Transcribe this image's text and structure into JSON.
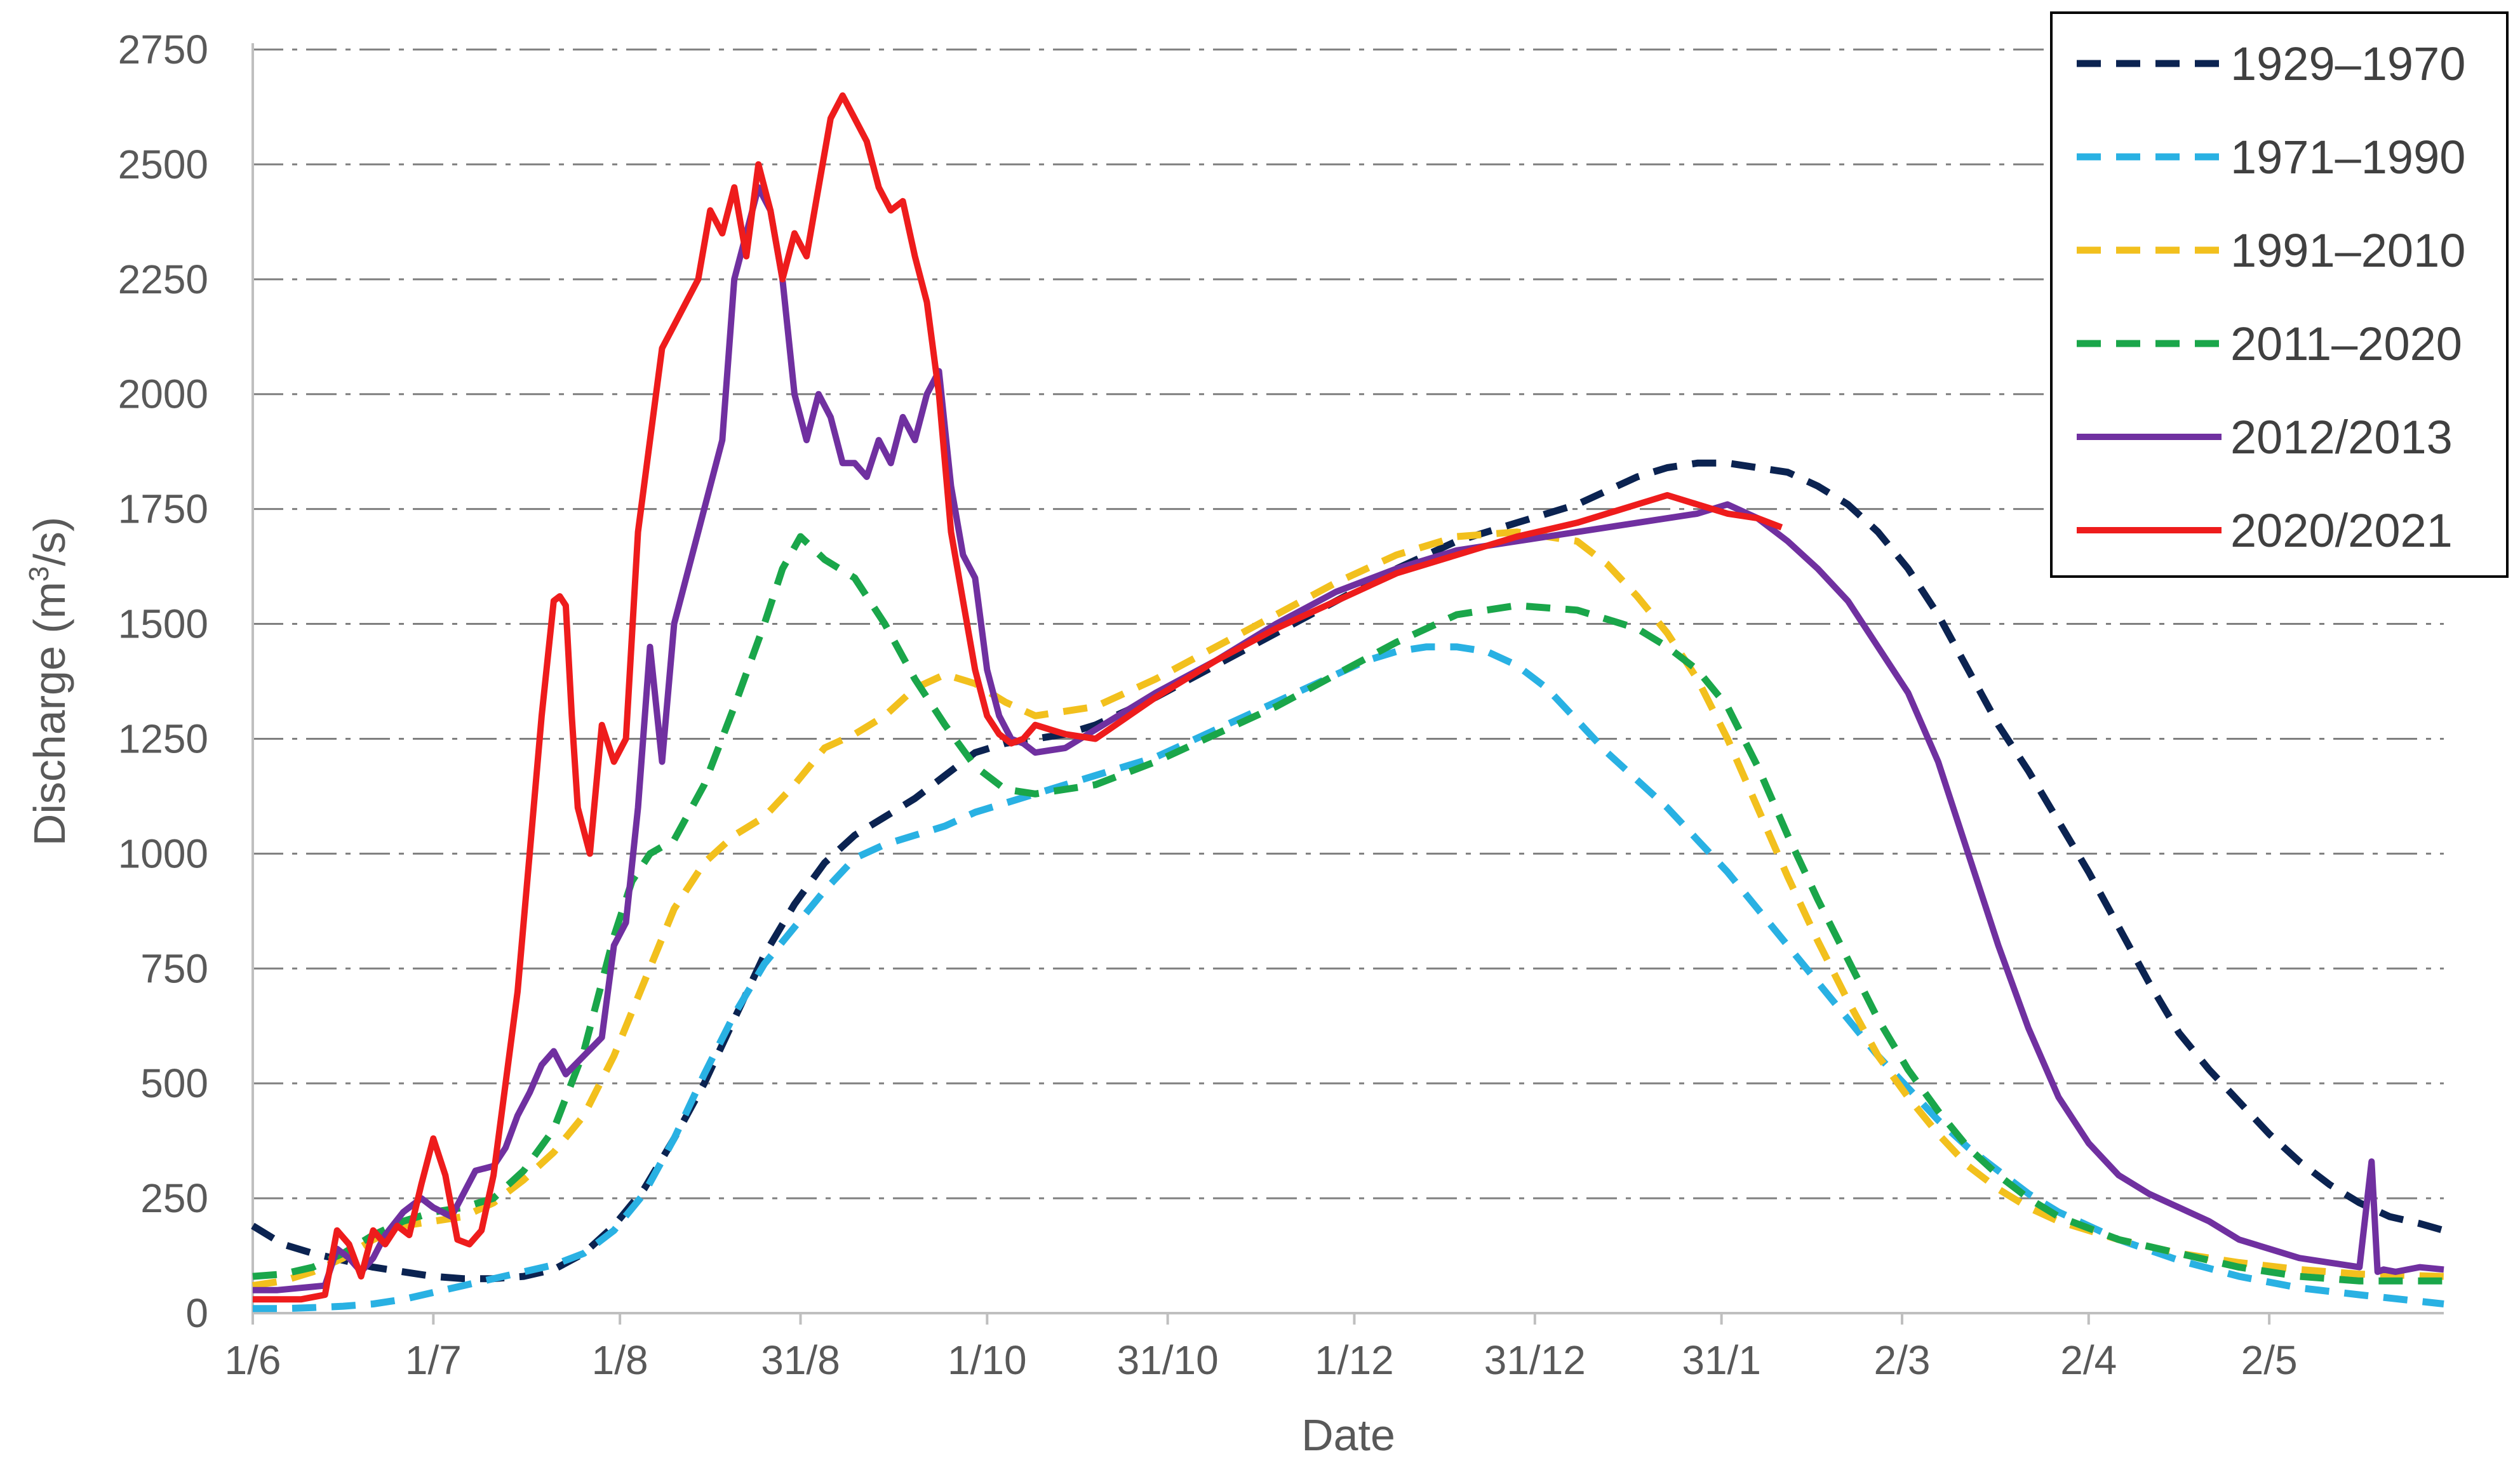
{
  "chart_data": {
    "type": "line",
    "xlabel": "Date",
    "ylabel": "Discharge (m³/s)",
    "ylabel_parts": [
      "Discharge (m",
      "3",
      "/s)"
    ],
    "ylim": [
      0,
      2750
    ],
    "yticks": [
      0,
      250,
      500,
      750,
      1000,
      1250,
      1500,
      1750,
      2000,
      2250,
      2500,
      2750
    ],
    "xlim_days": [
      0,
      364
    ],
    "xticks": [
      {
        "label": "1/6",
        "day": 0
      },
      {
        "label": "1/7",
        "day": 30
      },
      {
        "label": "1/8",
        "day": 61
      },
      {
        "label": "31/8",
        "day": 91
      },
      {
        "label": "1/10",
        "day": 122
      },
      {
        "label": "31/10",
        "day": 152
      },
      {
        "label": "1/12",
        "day": 183
      },
      {
        "label": "31/12",
        "day": 213
      },
      {
        "label": "31/1",
        "day": 244
      },
      {
        "label": "2/3",
        "day": 274
      },
      {
        "label": "2/4",
        "day": 305
      },
      {
        "label": "2/5",
        "day": 335
      }
    ],
    "grid": true,
    "legend_position": "top-right",
    "series": [
      {
        "name": "1929–1970",
        "color": "#0b2351",
        "style": "dashed",
        "x": [
          0,
          5,
          10,
          15,
          20,
          25,
          30,
          35,
          40,
          45,
          50,
          55,
          60,
          65,
          70,
          75,
          80,
          85,
          90,
          95,
          100,
          105,
          110,
          115,
          120,
          125,
          130,
          135,
          140,
          145,
          150,
          160,
          170,
          180,
          190,
          200,
          210,
          220,
          225,
          230,
          235,
          240,
          245,
          250,
          255,
          260,
          265,
          270,
          275,
          280,
          285,
          290,
          295,
          300,
          305,
          310,
          315,
          320,
          325,
          330,
          335,
          340,
          345,
          350,
          355,
          360,
          364
        ],
        "y": [
          190,
          150,
          130,
          115,
          100,
          90,
          80,
          75,
          75,
          80,
          95,
          130,
          190,
          270,
          380,
          500,
          640,
          780,
          890,
          980,
          1040,
          1080,
          1120,
          1170,
          1220,
          1240,
          1250,
          1260,
          1280,
          1310,
          1340,
          1410,
          1480,
          1550,
          1620,
          1680,
          1720,
          1760,
          1790,
          1820,
          1840,
          1850,
          1850,
          1840,
          1830,
          1800,
          1760,
          1700,
          1620,
          1520,
          1400,
          1280,
          1180,
          1070,
          960,
          840,
          720,
          610,
          530,
          460,
          390,
          330,
          280,
          240,
          210,
          195,
          180
        ]
      },
      {
        "name": "1971–1990",
        "color": "#29b1e3",
        "style": "dashed",
        "x": [
          0,
          5,
          10,
          15,
          20,
          25,
          30,
          35,
          40,
          45,
          50,
          55,
          60,
          65,
          70,
          75,
          80,
          85,
          90,
          95,
          100,
          105,
          110,
          115,
          120,
          125,
          130,
          140,
          150,
          160,
          170,
          180,
          185,
          190,
          195,
          200,
          205,
          210,
          215,
          220,
          225,
          230,
          235,
          240,
          245,
          250,
          255,
          260,
          265,
          270,
          275,
          280,
          285,
          290,
          295,
          300,
          310,
          320,
          330,
          340,
          350,
          364
        ],
        "y": [
          10,
          10,
          12,
          15,
          20,
          30,
          45,
          60,
          75,
          90,
          105,
          130,
          180,
          260,
          380,
          520,
          650,
          760,
          840,
          920,
          990,
          1020,
          1040,
          1060,
          1090,
          1110,
          1130,
          1170,
          1210,
          1270,
          1330,
          1390,
          1420,
          1440,
          1450,
          1450,
          1440,
          1410,
          1360,
          1290,
          1220,
          1160,
          1100,
          1030,
          960,
          880,
          800,
          720,
          640,
          560,
          490,
          420,
          360,
          310,
          260,
          220,
          160,
          115,
          80,
          55,
          40,
          20
        ]
      },
      {
        "name": "1991–2010",
        "color": "#f2c01d",
        "style": "dashed",
        "x": [
          0,
          5,
          10,
          15,
          20,
          25,
          30,
          35,
          40,
          45,
          50,
          55,
          60,
          65,
          70,
          75,
          80,
          85,
          90,
          95,
          100,
          105,
          110,
          115,
          120,
          125,
          130,
          140,
          150,
          160,
          170,
          180,
          190,
          200,
          210,
          220,
          225,
          230,
          235,
          240,
          245,
          250,
          255,
          260,
          265,
          270,
          275,
          280,
          285,
          290,
          295,
          300,
          310,
          320,
          330,
          340,
          350,
          364
        ],
        "y": [
          60,
          70,
          90,
          120,
          160,
          190,
          200,
          210,
          240,
          290,
          350,
          430,
          560,
          720,
          880,
          980,
          1040,
          1080,
          1150,
          1230,
          1260,
          1300,
          1360,
          1390,
          1370,
          1330,
          1300,
          1320,
          1380,
          1450,
          1520,
          1590,
          1650,
          1690,
          1700,
          1680,
          1630,
          1560,
          1480,
          1380,
          1250,
          1100,
          950,
          810,
          680,
          560,
          470,
          390,
          320,
          270,
          230,
          200,
          160,
          130,
          110,
          95,
          85,
          80
        ]
      },
      {
        "name": "2011–2020",
        "color": "#1aa64a",
        "style": "dashed",
        "x": [
          0,
          5,
          10,
          15,
          20,
          25,
          30,
          35,
          40,
          45,
          50,
          55,
          60,
          63,
          66,
          70,
          75,
          80,
          85,
          88,
          91,
          95,
          100,
          105,
          110,
          115,
          120,
          125,
          130,
          140,
          150,
          160,
          170,
          180,
          190,
          200,
          210,
          220,
          225,
          230,
          235,
          240,
          245,
          250,
          255,
          260,
          265,
          270,
          275,
          280,
          285,
          290,
          295,
          300,
          310,
          320,
          330,
          340,
          350,
          364
        ],
        "y": [
          80,
          85,
          100,
          130,
          170,
          200,
          220,
          230,
          250,
          310,
          400,
          570,
          820,
          940,
          1000,
          1030,
          1150,
          1320,
          1500,
          1620,
          1690,
          1640,
          1600,
          1500,
          1380,
          1280,
          1190,
          1140,
          1130,
          1150,
          1200,
          1260,
          1320,
          1390,
          1460,
          1520,
          1540,
          1530,
          1510,
          1490,
          1450,
          1400,
          1320,
          1190,
          1040,
          900,
          770,
          640,
          530,
          440,
          360,
          300,
          250,
          210,
          160,
          130,
          100,
          80,
          70,
          70
        ]
      },
      {
        "name": "2012/2013",
        "color": "#7030a0",
        "style": "solid",
        "x": [
          0,
          4,
          8,
          12,
          14,
          16,
          18,
          20,
          22,
          25,
          28,
          30,
          33,
          35,
          37,
          40,
          42,
          44,
          46,
          48,
          50,
          52,
          55,
          58,
          60,
          62,
          64,
          66,
          68,
          70,
          72,
          74,
          76,
          78,
          80,
          82,
          84,
          86,
          88,
          90,
          92,
          94,
          96,
          98,
          100,
          102,
          104,
          106,
          108,
          110,
          112,
          114,
          116,
          118,
          120,
          122,
          124,
          126,
          128,
          130,
          135,
          140,
          150,
          160,
          170,
          180,
          190,
          200,
          210,
          220,
          230,
          240,
          245,
          250,
          255,
          260,
          265,
          270,
          275,
          280,
          285,
          290,
          295,
          300,
          305,
          310,
          315,
          320,
          325,
          330,
          335,
          340,
          345,
          350,
          352,
          353,
          354,
          356,
          360,
          364
        ],
        "y": [
          50,
          50,
          55,
          60,
          140,
          120,
          90,
          120,
          170,
          220,
          250,
          230,
          210,
          260,
          310,
          320,
          360,
          430,
          480,
          540,
          570,
          520,
          560,
          600,
          800,
          850,
          1100,
          1450,
          1200,
          1500,
          1600,
          1700,
          1800,
          1900,
          2250,
          2350,
          2450,
          2400,
          2250,
          2000,
          1900,
          2000,
          1950,
          1850,
          1850,
          1820,
          1900,
          1850,
          1950,
          1900,
          2000,
          2050,
          1800,
          1650,
          1600,
          1400,
          1300,
          1250,
          1240,
          1220,
          1230,
          1270,
          1350,
          1420,
          1500,
          1570,
          1620,
          1660,
          1680,
          1700,
          1720,
          1740,
          1760,
          1730,
          1680,
          1620,
          1550,
          1450,
          1350,
          1200,
          1000,
          800,
          620,
          470,
          370,
          300,
          260,
          230,
          200,
          160,
          140,
          120,
          110,
          100,
          330,
          90,
          95,
          90,
          100,
          95
        ]
      },
      {
        "name": "2020/2021",
        "color": "#ee1c1c",
        "style": "solid",
        "x": [
          0,
          4,
          8,
          12,
          14,
          16,
          18,
          20,
          22,
          24,
          26,
          28,
          30,
          32,
          34,
          36,
          38,
          40,
          42,
          44,
          46,
          48,
          50,
          51,
          52,
          53,
          54,
          56,
          58,
          60,
          62,
          64,
          66,
          68,
          70,
          72,
          74,
          76,
          78,
          80,
          82,
          84,
          86,
          88,
          90,
          92,
          94,
          96,
          98,
          100,
          102,
          104,
          106,
          108,
          110,
          112,
          114,
          116,
          118,
          120,
          122,
          124,
          126,
          128,
          130,
          135,
          140,
          150,
          160,
          170,
          180,
          190,
          200,
          210,
          220,
          230,
          235,
          240,
          245,
          250,
          254
        ],
        "y": [
          30,
          30,
          30,
          40,
          180,
          150,
          80,
          180,
          150,
          190,
          170,
          280,
          380,
          300,
          160,
          150,
          180,
          300,
          500,
          700,
          1000,
          1300,
          1550,
          1560,
          1540,
          1300,
          1100,
          1000,
          1280,
          1200,
          1250,
          1700,
          1900,
          2100,
          2150,
          2200,
          2250,
          2400,
          2350,
          2450,
          2300,
          2500,
          2400,
          2250,
          2350,
          2300,
          2450,
          2600,
          2650,
          2600,
          2550,
          2450,
          2400,
          2420,
          2300,
          2200,
          2000,
          1700,
          1550,
          1400,
          1300,
          1260,
          1240,
          1250,
          1280,
          1260,
          1250,
          1340,
          1420,
          1490,
          1550,
          1610,
          1650,
          1690,
          1720,
          1760,
          1780,
          1760,
          1740,
          1730,
          1710
        ]
      }
    ]
  }
}
